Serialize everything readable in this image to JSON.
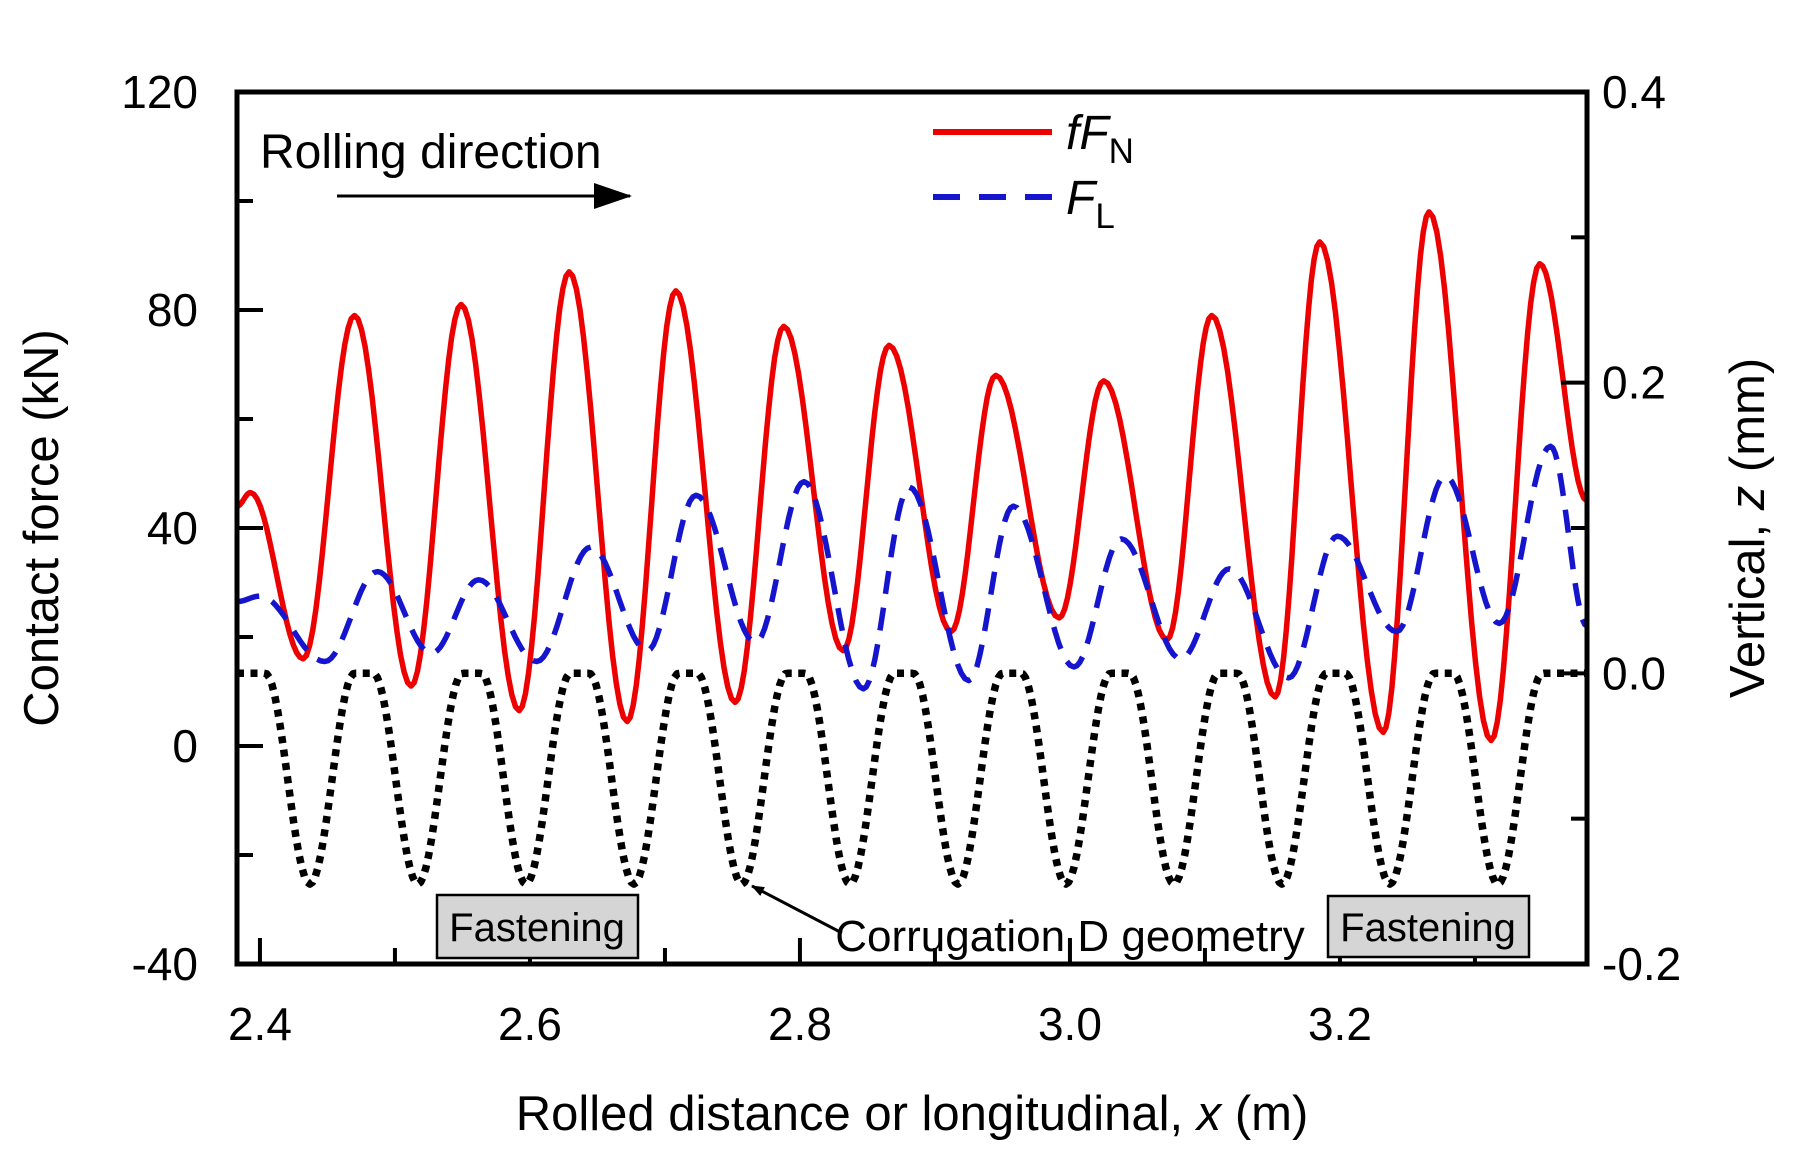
{
  "figure": {
    "background": "#ffffff",
    "annotations": {
      "rolling_direction": "Rolling direction",
      "fastening_left": "Fastening",
      "fastening_right": "Fastening",
      "corrugation": "Corrugation D geometry"
    },
    "legend": [
      {
        "label_main": "fF",
        "label_sub": "N",
        "color": "#ec0000",
        "style": "solid"
      },
      {
        "label_main": "F",
        "label_sub": "L",
        "color": "#1515cd",
        "style": "dashed"
      }
    ]
  },
  "chart_data": {
    "type": "line",
    "xlabel_parts": [
      "Rolled distance or longitudinal, ",
      "x",
      " (m)"
    ],
    "ylabel_left": "Contact force (kN)",
    "ylabel_right_parts": [
      "Vertical, ",
      "z",
      " (mm)"
    ],
    "xlim": [
      2.383,
      3.383
    ],
    "ylim_left": [
      -40,
      120
    ],
    "ylim_right": [
      -0.2,
      0.4
    ],
    "x_major_ticks": [
      2.4,
      2.6,
      2.8,
      3.0,
      3.2
    ],
    "x_major_labels": [
      "2.4",
      "2.6",
      "2.8",
      "3.0",
      "3.2"
    ],
    "x_minor_ticks": [
      2.5,
      2.7,
      2.9,
      3.1,
      3.3
    ],
    "y_left_major_ticks": [
      -40,
      0,
      40,
      80,
      120
    ],
    "y_left_labels": [
      "-40",
      "0",
      "40",
      "80",
      "120"
    ],
    "y_left_minor_ticks": [
      -20,
      20,
      60,
      100
    ],
    "y_right_major_ticks": [
      -0.2,
      0.0,
      0.2,
      0.4
    ],
    "y_right_labels": [
      "-0.2",
      "0.0",
      "0.2",
      "0.4"
    ],
    "y_right_minor_ticks": [
      -0.1,
      0.1,
      0.3
    ],
    "grid": false,
    "legend_position": "top-center",
    "series": [
      {
        "name": "fFN",
        "axis": "left",
        "color": "#ec0000",
        "style": "solid",
        "width": 5.5,
        "note": "keypoints are alternating local extrema (x in m, force in kN), smooth oscillation between them",
        "keypoints": [
          [
            2.383,
            44
          ],
          [
            2.393,
            46.5
          ],
          [
            2.432,
            16
          ],
          [
            2.47,
            79
          ],
          [
            2.512,
            11
          ],
          [
            2.549,
            81
          ],
          [
            2.592,
            6.5
          ],
          [
            2.629,
            87
          ],
          [
            2.672,
            4.5
          ],
          [
            2.708,
            83.5
          ],
          [
            2.752,
            8
          ],
          [
            2.788,
            77
          ],
          [
            2.832,
            17.5
          ],
          [
            2.866,
            73.5
          ],
          [
            2.912,
            21
          ],
          [
            2.945,
            68
          ],
          [
            2.992,
            23.5
          ],
          [
            3.025,
            67
          ],
          [
            3.072,
            19.5
          ],
          [
            3.105,
            79
          ],
          [
            3.152,
            9
          ],
          [
            3.185,
            92.5
          ],
          [
            3.232,
            2.5
          ],
          [
            3.266,
            98
          ],
          [
            3.312,
            1
          ],
          [
            3.348,
            88.5
          ],
          [
            3.383,
            45
          ]
        ]
      },
      {
        "name": "FL",
        "axis": "left",
        "color": "#1515cd",
        "style": "dashed",
        "width": 5.5,
        "dash": [
          23,
          14
        ],
        "note": "keypoints are alternating local extrema (x in m, force in kN)",
        "keypoints": [
          [
            2.383,
            26.5
          ],
          [
            2.4,
            27.5
          ],
          [
            2.448,
            15.5
          ],
          [
            2.487,
            32
          ],
          [
            2.527,
            17
          ],
          [
            2.562,
            30.5
          ],
          [
            2.605,
            15.5
          ],
          [
            2.645,
            36.5
          ],
          [
            2.687,
            17.5
          ],
          [
            2.723,
            46
          ],
          [
            2.767,
            19
          ],
          [
            2.803,
            48.5
          ],
          [
            2.847,
            10.5
          ],
          [
            2.881,
            47.5
          ],
          [
            2.925,
            12
          ],
          [
            2.958,
            44
          ],
          [
            3.003,
            14.5
          ],
          [
            3.038,
            38
          ],
          [
            3.082,
            16
          ],
          [
            3.118,
            32.5
          ],
          [
            3.162,
            12.5
          ],
          [
            3.198,
            38.5
          ],
          [
            3.242,
            21
          ],
          [
            3.278,
            49.5
          ],
          [
            3.318,
            22.5
          ],
          [
            3.356,
            55
          ],
          [
            3.383,
            22
          ]
        ]
      },
      {
        "name": "corrugation_D",
        "axis": "right",
        "color": "#000000",
        "style": "dotted",
        "width": 7.5,
        "dash": [
          7,
          6.5
        ],
        "note": "rail surface: flat at top_mm with cosine dips of depth_mm centered at valleys_x",
        "top_mm": 0.0,
        "depth_mm": -0.145,
        "dip_width_m": 0.066,
        "wavelength_m": 0.08,
        "valleys_x": [
          2.437,
          2.517,
          2.597,
          2.677,
          2.757,
          2.837,
          2.917,
          2.997,
          3.077,
          3.157,
          3.237,
          3.317
        ]
      }
    ],
    "annotation_positions": {
      "fastening_x_m": [
        2.6,
        3.265
      ],
      "corrugation_arrow_target": {
        "x_m": 2.76,
        "z_mm": -0.142
      },
      "rolling_arrow_x_m": [
        2.457,
        2.684
      ]
    }
  }
}
